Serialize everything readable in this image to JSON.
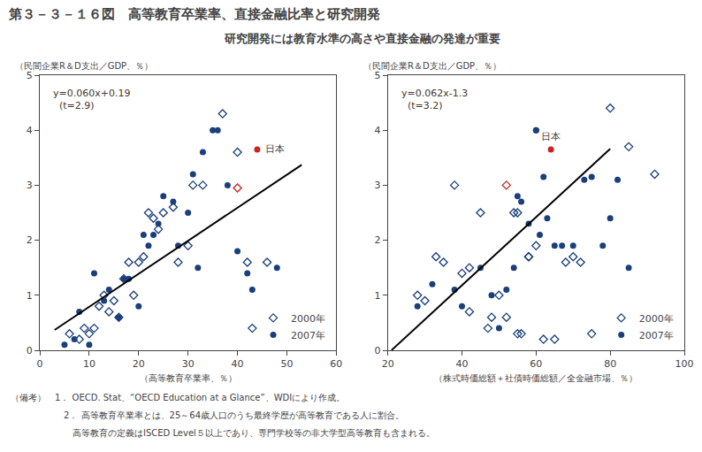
{
  "chart_data": [
    {
      "type": "scatter",
      "title": "第３－３－１６図　高等教育卒業率、直接金融比率と研究開発",
      "subtitle": "研究開発には教育水準の高さや直接金融の発達が重要",
      "notes": [
        "（備考）　1． OECD. Stat、“OECD Education at a Glance”、WDIにより作成。",
        "　　　　　　2． 高等教育卒業率とは、25～64歳人口のうち最終学歴が高等教育である人に割合。",
        "　　　　　　　高等教育の定義はISCED Level５以上であり、専門学校等の非大学型高等教育も含まれる。"
      ],
      "ylabel": "（民間企業R＆D支出／GDP、％）",
      "xlabel": "（高等教育卒業率、％）",
      "equation": "y=0.060x+0.19\n  (t=2.9)",
      "annotations": [
        {
          "text": "日本",
          "x": 44,
          "y": 3.65
        }
      ],
      "xlim": [
        0,
        60
      ],
      "ylim": [
        0,
        5
      ],
      "xticks": [
        0,
        10,
        20,
        30,
        40,
        50,
        60
      ],
      "yticks": [
        0,
        1,
        2,
        3,
        4,
        5
      ],
      "grid": false,
      "legend": "lower right",
      "series": [
        {
          "name": "2000年",
          "color": "#1a3f7a",
          "marker": "diamond-open",
          "x": [
            6,
            8,
            9,
            10,
            11,
            12,
            13,
            14,
            15,
            16,
            17,
            18,
            19,
            20,
            21,
            22,
            23,
            24,
            25,
            27,
            28,
            30,
            31,
            33,
            37,
            40,
            42,
            43,
            46
          ],
          "values": [
            0.3,
            0.2,
            0.4,
            0.3,
            0.4,
            0.8,
            1.0,
            0.7,
            0.9,
            0.6,
            1.3,
            1.6,
            1.0,
            1.6,
            1.7,
            2.5,
            2.4,
            2.2,
            2.5,
            2.6,
            1.6,
            1.9,
            3.0,
            3.0,
            4.3,
            3.6,
            1.6,
            0.4,
            1.6
          ]
        },
        {
          "name": "2007年",
          "color": "#1a3f7a",
          "marker": "circle",
          "x": [
            5,
            7,
            8,
            10,
            11,
            13,
            14,
            16,
            17,
            18,
            20,
            21,
            22,
            23,
            24,
            25,
            27,
            28,
            30,
            31,
            32,
            33,
            35,
            36,
            38,
            40,
            42,
            43,
            48
          ],
          "values": [
            0.1,
            0.2,
            0.7,
            0.1,
            1.4,
            0.9,
            1.1,
            0.6,
            1.3,
            1.3,
            0.8,
            2.1,
            1.9,
            2.1,
            2.3,
            2.8,
            2.7,
            1.9,
            2.5,
            3.2,
            1.5,
            3.6,
            4.0,
            4.0,
            3.0,
            1.8,
            1.4,
            1.1,
            1.5
          ]
        },
        {
          "color": "#cc2222",
          "marker": "diamond-open",
          "x": [
            40
          ],
          "values": [
            2.95
          ]
        },
        {
          "color": "#cc2222",
          "marker": "circle",
          "x": [
            44
          ],
          "values": [
            3.65
          ]
        },
        {
          "type": "line",
          "color": "#000000",
          "line_style": "solid",
          "x": [
            3,
            53
          ],
          "values": [
            0.37,
            3.37
          ]
        }
      ]
    },
    {
      "type": "scatter",
      "ylabel": "（民間企業R＆D支出／GDP、％）",
      "xlabel": "（株式時価総額＋社債時価総額／全金融市場、％）",
      "equation": "y=0.062x-1.3\n  (t=3.2)",
      "annotations": [
        {
          "text": "日本",
          "x": 64,
          "y": 3.65
        }
      ],
      "xlim": [
        20,
        100
      ],
      "ylim": [
        0,
        5
      ],
      "xticks": [
        20,
        40,
        60,
        80,
        100
      ],
      "yticks": [
        0,
        1,
        2,
        3,
        4,
        5
      ],
      "grid": false,
      "legend": "lower right",
      "series": [
        {
          "name": "2000年",
          "color": "#1a3f7a",
          "marker": "diamond-open",
          "x": [
            28,
            30,
            33,
            35,
            38,
            40,
            42,
            42,
            45,
            47,
            48,
            50,
            52,
            54,
            55,
            55,
            56,
            58,
            58,
            60,
            62,
            65,
            68,
            70,
            72,
            75,
            80,
            85,
            92
          ],
          "values": [
            1.0,
            0.9,
            1.7,
            1.6,
            3.0,
            1.4,
            1.5,
            0.7,
            2.5,
            0.4,
            0.6,
            1.0,
            0.6,
            2.5,
            2.5,
            0.3,
            0.3,
            1.7,
            1.7,
            1.9,
            0.2,
            0.2,
            1.6,
            1.7,
            1.6,
            0.3,
            4.4,
            3.7,
            3.2
          ]
        },
        {
          "name": "2007年",
          "color": "#1a3f7a",
          "marker": "circle",
          "x": [
            28,
            32,
            38,
            40,
            45,
            48,
            50,
            52,
            54,
            55,
            56,
            58,
            60,
            60,
            61,
            62,
            63,
            65,
            67,
            70,
            73,
            75,
            78,
            80,
            82,
            85
          ],
          "values": [
            0.8,
            1.2,
            1.1,
            0.8,
            1.5,
            1.0,
            0.4,
            1.1,
            1.5,
            2.8,
            2.7,
            2.3,
            4.0,
            4.0,
            2.1,
            3.15,
            2.4,
            1.9,
            1.9,
            1.9,
            3.1,
            3.15,
            1.9,
            2.4,
            3.1,
            1.5
          ]
        },
        {
          "color": "#cc2222",
          "marker": "diamond-open",
          "x": [
            52
          ],
          "values": [
            3.0
          ]
        },
        {
          "color": "#cc2222",
          "marker": "circle",
          "x": [
            64
          ],
          "values": [
            3.65
          ]
        },
        {
          "type": "line",
          "color": "#000000",
          "line_style": "solid",
          "x": [
            21,
            80
          ],
          "values": [
            0.002,
            3.66
          ]
        }
      ]
    }
  ]
}
